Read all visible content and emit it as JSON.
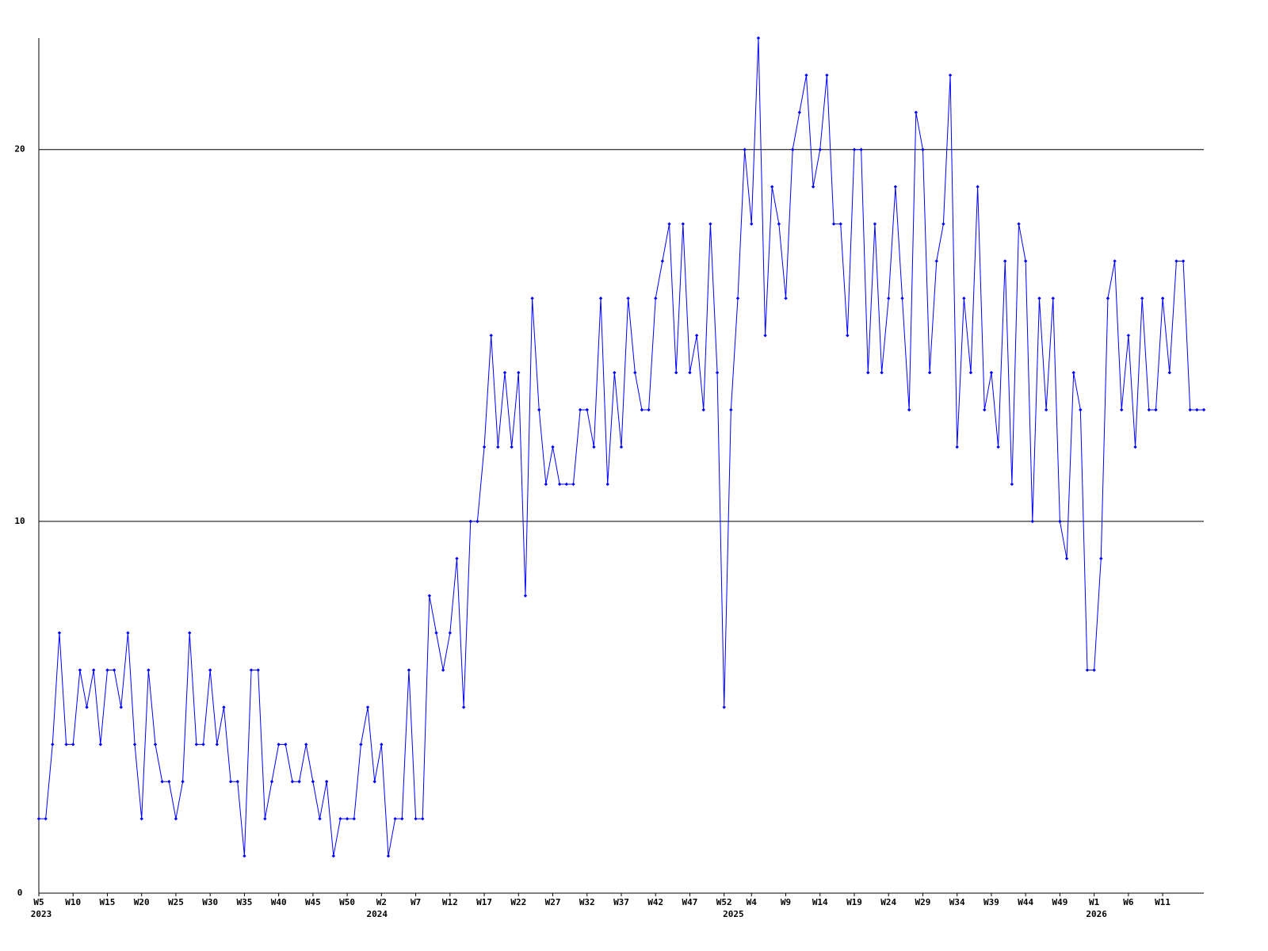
{
  "chart_data": {
    "type": "line",
    "categories": [
      "W5",
      null,
      null,
      null,
      null,
      "W10",
      null,
      null,
      null,
      null,
      "W15",
      null,
      null,
      null,
      null,
      "W20",
      null,
      null,
      null,
      null,
      "W25",
      null,
      null,
      null,
      null,
      "W30",
      null,
      null,
      null,
      null,
      "W35",
      null,
      null,
      null,
      null,
      "W40",
      null,
      null,
      null,
      null,
      "W45",
      null,
      null,
      null,
      null,
      "W50",
      null,
      null,
      null,
      null,
      "W2",
      null,
      null,
      null,
      null,
      "W7",
      null,
      null,
      null,
      null,
      "W12",
      null,
      null,
      null,
      null,
      "W17",
      null,
      null,
      null,
      null,
      "W22",
      null,
      null,
      null,
      null,
      "W27",
      null,
      null,
      null,
      null,
      "W32",
      null,
      null,
      null,
      null,
      "W37",
      null,
      null,
      null,
      null,
      "W42",
      null,
      null,
      null,
      null,
      "W47",
      null,
      null,
      null,
      null,
      "W52",
      null,
      null,
      null,
      "W4",
      null,
      null,
      null,
      null,
      "W9",
      null,
      null,
      null,
      null,
      "W14",
      null,
      null,
      null,
      null,
      "W19",
      null,
      null,
      null,
      null,
      "W24",
      null,
      null,
      null,
      null,
      "W29",
      null,
      null,
      null,
      null,
      "W34",
      null,
      null,
      null,
      null,
      "W39",
      null,
      null,
      null,
      null,
      "W44",
      null,
      null,
      null,
      null,
      "W49",
      null,
      null,
      null,
      null,
      "W1",
      null,
      null,
      null,
      null,
      "W6",
      null,
      null,
      null,
      null,
      "W11",
      null,
      null,
      null,
      null,
      null,
      null
    ],
    "category_years": [
      "2023",
      null,
      null,
      null,
      null,
      null,
      null,
      null,
      null,
      null,
      null,
      null,
      null,
      null,
      null,
      null,
      null,
      null,
      null,
      null,
      null,
      null,
      null,
      null,
      null,
      null,
      null,
      null,
      null,
      null,
      null,
      null,
      null,
      null,
      null,
      null,
      null,
      null,
      null,
      null,
      null,
      null,
      null,
      null,
      null,
      null,
      null,
      null,
      null,
      "2024",
      null,
      null,
      null,
      null,
      null,
      null,
      null,
      null,
      null,
      null,
      null,
      null,
      null,
      null,
      null,
      null,
      null,
      null,
      null,
      null,
      null,
      null,
      null,
      null,
      null,
      null,
      null,
      null,
      null,
      null,
      null,
      null,
      null,
      null,
      null,
      null,
      null,
      null,
      null,
      null,
      null,
      null,
      null,
      null,
      null,
      null,
      null,
      null,
      null,
      null,
      null,
      "2025",
      null,
      null,
      null,
      null,
      null,
      null,
      null,
      null,
      null,
      null,
      null,
      null,
      null,
      null,
      null,
      null,
      null,
      null,
      null,
      null,
      null,
      null,
      null,
      null,
      null,
      null,
      null,
      null,
      null,
      null,
      null,
      null,
      null,
      null,
      null,
      null,
      null,
      null,
      null,
      null,
      null,
      null,
      null,
      null,
      null,
      null,
      null,
      null,
      null,
      null,
      null,
      null,
      "2026",
      null,
      null,
      null,
      null,
      null,
      null,
      null,
      null,
      null,
      null,
      null,
      null,
      null,
      null,
      null,
      null
    ],
    "values": [
      2,
      2,
      4,
      7,
      4,
      4,
      6,
      5,
      6,
      4,
      6,
      6,
      5,
      7,
      4,
      2,
      6,
      4,
      3,
      3,
      2,
      3,
      7,
      4,
      4,
      6,
      4,
      5,
      3,
      3,
      1,
      6,
      6,
      2,
      3,
      4,
      4,
      3,
      3,
      4,
      3,
      2,
      3,
      1,
      2,
      2,
      2,
      4,
      5,
      3,
      4,
      1,
      2,
      2,
      6,
      2,
      2,
      8,
      7,
      6,
      7,
      9,
      5,
      10,
      10,
      12,
      15,
      12,
      14,
      12,
      14,
      8,
      16,
      13,
      11,
      12,
      11,
      11,
      11,
      13,
      13,
      12,
      16,
      11,
      14,
      12,
      16,
      14,
      13,
      13,
      16,
      17,
      18,
      14,
      18,
      14,
      15,
      13,
      18,
      14,
      5,
      13,
      16,
      20,
      18,
      23,
      15,
      19,
      18,
      16,
      20,
      21,
      22,
      19,
      20,
      22,
      18,
      18,
      15,
      20,
      20,
      14,
      18,
      14,
      16,
      19,
      16,
      13,
      21,
      20,
      14,
      17,
      18,
      22,
      12,
      16,
      14,
      19,
      13,
      14,
      12,
      17,
      11,
      18,
      17,
      10,
      16,
      13,
      16,
      10,
      9,
      14,
      13,
      6,
      6,
      9,
      16,
      17,
      13,
      15,
      12,
      16,
      13,
      13,
      16,
      14,
      17,
      17,
      13,
      13,
      13
    ],
    "color": "#0000ff",
    "ylim": [
      0,
      23
    ],
    "yticks": [
      0,
      10,
      20
    ],
    "grid": true
  }
}
